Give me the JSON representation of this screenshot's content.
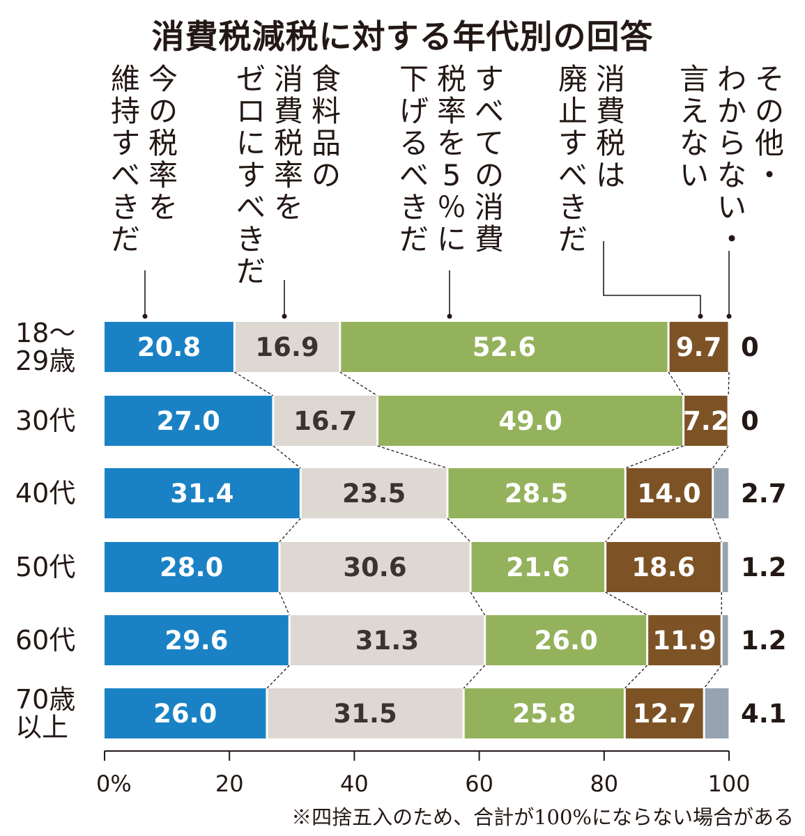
{
  "title": "消費税減税に対する年代別の回答",
  "footnote": "※四捨五入のため、合計が100%にならない場合がある",
  "colors": {
    "keep": "#1a82c4",
    "food_zero": "#ddd8d2",
    "cut5": "#94b25c",
    "abolish": "#7d5326",
    "other": "#97a3b0",
    "text_light": "#ffffff",
    "text_dark": "#3a3330"
  },
  "chart_data": {
    "type": "bar",
    "orientation": "horizontal-stacked",
    "title": "消費税減税に対する年代別の回答",
    "xlim": [
      0,
      100
    ],
    "x_ticks": [
      "0%",
      "20",
      "40",
      "60",
      "80",
      "100"
    ],
    "categories": [
      [
        "18〜",
        "29歳"
      ],
      [
        "30代"
      ],
      [
        "40代"
      ],
      [
        "50代"
      ],
      [
        "60代"
      ],
      [
        "70歳",
        "以上"
      ]
    ],
    "series": [
      {
        "key": "keep",
        "name": [
          "今の税率を",
          "維持すべきだ"
        ],
        "values": [
          20.8,
          27.0,
          31.4,
          28.0,
          29.6,
          26.0
        ]
      },
      {
        "key": "food_zero",
        "name": [
          "食料品の",
          "消費税率を",
          "ゼロにすべきだ"
        ],
        "values": [
          16.9,
          16.7,
          23.5,
          30.6,
          31.3,
          31.5
        ]
      },
      {
        "key": "cut5",
        "name": [
          "すべての消費",
          "税率を5％に",
          "下げるべきだ"
        ],
        "values": [
          52.6,
          49.0,
          28.5,
          21.6,
          26.0,
          25.8
        ]
      },
      {
        "key": "abolish",
        "name": [
          "消費税は",
          "廃止すべきだ"
        ],
        "values": [
          9.7,
          7.2,
          14.0,
          18.6,
          11.9,
          12.7
        ]
      },
      {
        "key": "other",
        "name": [
          "その他・",
          "わからない・",
          "言えない"
        ],
        "values": [
          0,
          0,
          2.7,
          1.2,
          1.2,
          4.1
        ]
      }
    ],
    "value_labels": [
      [
        "20.8",
        "16.9",
        "52.6",
        "9.7",
        "0"
      ],
      [
        "27.0",
        "16.7",
        "49.0",
        "7.2",
        "0"
      ],
      [
        "31.4",
        "23.5",
        "28.5",
        "14.0",
        "2.7"
      ],
      [
        "28.0",
        "30.6",
        "21.6",
        "18.6",
        "1.2"
      ],
      [
        "29.6",
        "31.3",
        "26.0",
        "11.9",
        "1.2"
      ],
      [
        "26.0",
        "31.5",
        "25.8",
        "12.7",
        "4.1"
      ]
    ],
    "legend": "vertical labels above bars with leader lines",
    "grid": false
  }
}
